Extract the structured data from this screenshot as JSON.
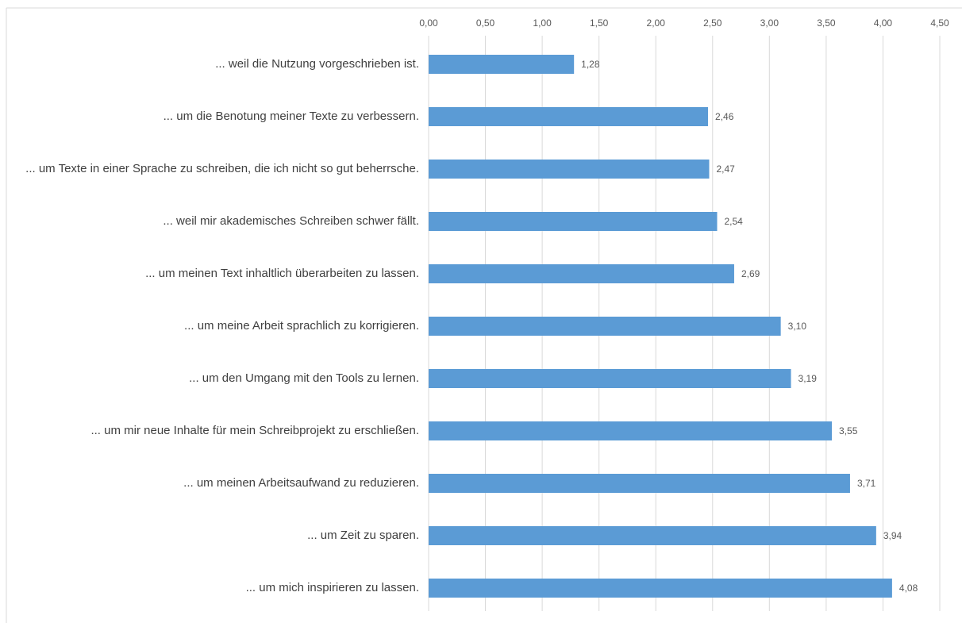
{
  "chart_data": {
    "type": "bar",
    "orientation": "horizontal",
    "categories": [
      "... weil die Nutzung vorgeschrieben ist.",
      "... um die Benotung meiner Texte zu verbessern.",
      "... um Texte in einer Sprache zu schreiben, die ich nicht so gut beherrsche.",
      "... weil mir akademisches Schreiben schwer fällt.",
      "... um meinen Text inhaltlich überarbeiten zu lassen.",
      "... um meine Arbeit sprachlich zu korrigieren.",
      "... um den Umgang mit den Tools zu lernen.",
      "... um mir neue Inhalte für mein Schreibprojekt zu erschließen.",
      "... um meinen Arbeitsaufwand zu reduzieren.",
      "... um Zeit zu sparen.",
      "... um mich inspirieren zu lassen."
    ],
    "values": [
      1.28,
      2.46,
      2.47,
      2.54,
      2.69,
      3.1,
      3.19,
      3.55,
      3.71,
      3.94,
      4.08
    ],
    "value_labels": [
      "1,28",
      "2,46",
      "2,47",
      "2,54",
      "2,69",
      "3,10",
      "3,19",
      "3,55",
      "3,71",
      "3,94",
      "4,08"
    ],
    "color": "#5b9bd5",
    "xlim": [
      0,
      4.5
    ],
    "xticks": [
      {
        "value": 0,
        "label": "0,00"
      },
      {
        "value": 0.5,
        "label": "0,50"
      },
      {
        "value": 1,
        "label": "1,00"
      },
      {
        "value": 1.5,
        "label": "1,50"
      },
      {
        "value": 2,
        "label": "2,00"
      },
      {
        "value": 2.5,
        "label": "2,50"
      },
      {
        "value": 3,
        "label": "3,00"
      },
      {
        "value": 3.5,
        "label": "3,50"
      },
      {
        "value": 4,
        "label": "4,00"
      },
      {
        "value": 4.5,
        "label": "4,50"
      }
    ],
    "grid": true
  }
}
